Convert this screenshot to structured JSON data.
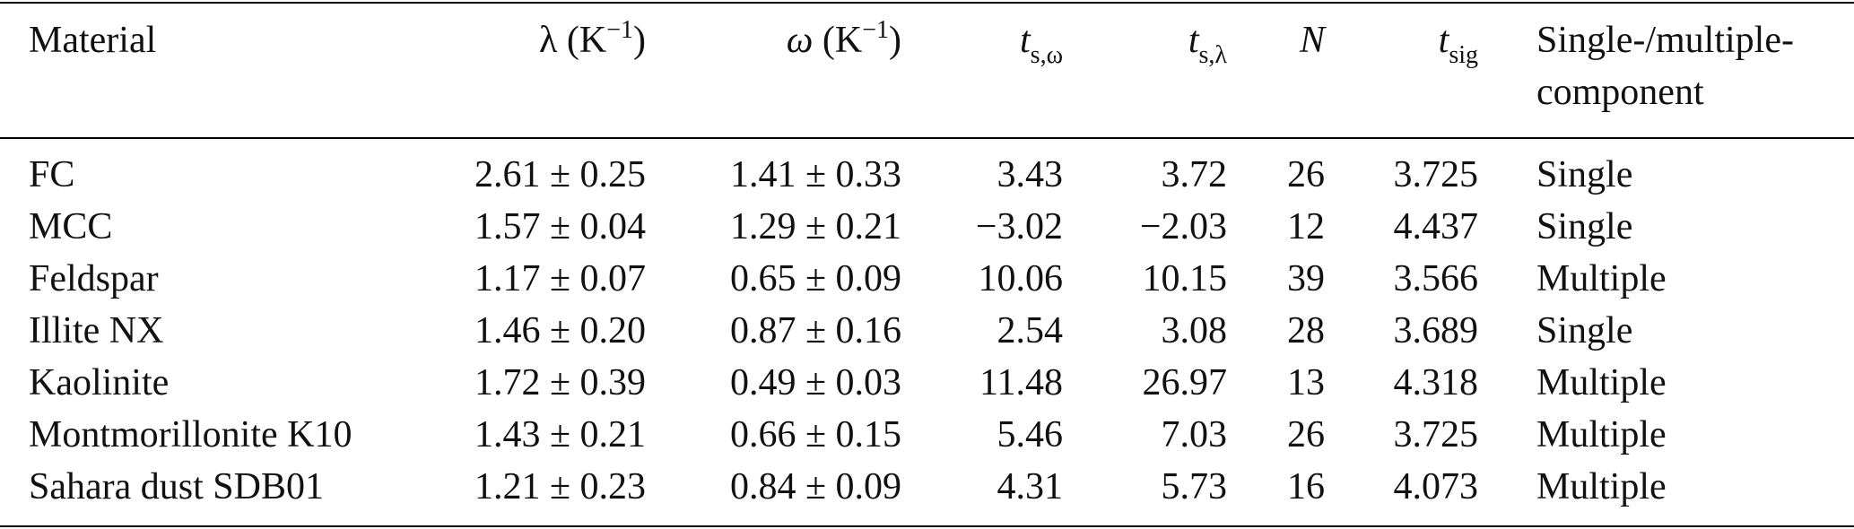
{
  "table": {
    "headers": {
      "material": "Material",
      "lambda_symbol": "λ",
      "lambda_unit": "(K",
      "lambda_exp": "−1",
      "lambda_close": ")",
      "omega_symbol": "ω",
      "omega_unit": "(K",
      "omega_exp": "−1",
      "omega_close": ")",
      "ts_omega_main": "t",
      "ts_omega_sub": "s,ω",
      "ts_lambda_main": "t",
      "ts_lambda_sub": "s,λ",
      "n": "N",
      "tsig_main": "t",
      "tsig_sub": "sig",
      "component_line1": "Single-/multiple-",
      "component_line2": "component"
    },
    "rows": [
      {
        "material": "FC",
        "lambda": "2.61 ± 0.25",
        "omega": "1.41 ± 0.33",
        "ts_omega": "3.43",
        "ts_lambda": "3.72",
        "n": "26",
        "tsig": "3.725",
        "component": "Single"
      },
      {
        "material": "MCC",
        "lambda": "1.57 ± 0.04",
        "omega": "1.29 ± 0.21",
        "ts_omega": "−3.02",
        "ts_lambda": "−2.03",
        "n": "12",
        "tsig": "4.437",
        "component": "Single"
      },
      {
        "material": "Feldspar",
        "lambda": "1.17 ± 0.07",
        "omega": "0.65 ± 0.09",
        "ts_omega": "10.06",
        "ts_lambda": "10.15",
        "n": "39",
        "tsig": "3.566",
        "component": "Multiple"
      },
      {
        "material": "Illite NX",
        "lambda": "1.46 ± 0.20",
        "omega": "0.87 ± 0.16",
        "ts_omega": "2.54",
        "ts_lambda": "3.08",
        "n": "28",
        "tsig": "3.689",
        "component": "Single"
      },
      {
        "material": "Kaolinite",
        "lambda": "1.72 ± 0.39",
        "omega": "0.49 ± 0.03",
        "ts_omega": "11.48",
        "ts_lambda": "26.97",
        "n": "13",
        "tsig": "4.318",
        "component": "Multiple"
      },
      {
        "material": "Montmorillonite K10",
        "lambda": "1.43 ± 0.21",
        "omega": "0.66 ± 0.15",
        "ts_omega": "5.46",
        "ts_lambda": "7.03",
        "n": "26",
        "tsig": "3.725",
        "component": "Multiple"
      },
      {
        "material": "Sahara dust SDB01",
        "lambda": "1.21 ± 0.23",
        "omega": "0.84 ± 0.09",
        "ts_omega": "4.31",
        "ts_lambda": "5.73",
        "n": "16",
        "tsig": "4.073",
        "component": "Multiple"
      }
    ]
  }
}
